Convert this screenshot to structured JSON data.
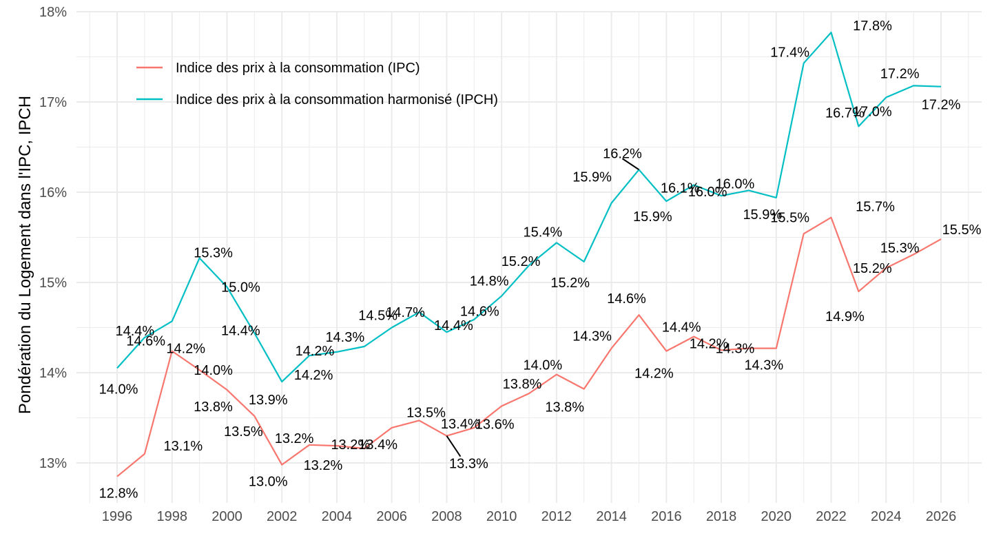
{
  "chart_data": {
    "type": "line",
    "title": "",
    "xlabel": "",
    "ylabel": "Pondération du Logement dans l'IPC, IPCH",
    "x": [
      1996,
      1997,
      1998,
      1999,
      2000,
      2001,
      2002,
      2003,
      2004,
      2005,
      2006,
      2007,
      2008,
      2009,
      2010,
      2011,
      2012,
      2013,
      2014,
      2015,
      2016,
      2017,
      2018,
      2019,
      2020,
      2021,
      2022,
      2023,
      2024,
      2025,
      2026
    ],
    "xlim": [
      1994.5,
      2027.5
    ],
    "ylim": [
      12.6,
      18.0
    ],
    "x_ticks": [
      1996,
      1998,
      2000,
      2002,
      2004,
      2006,
      2008,
      2010,
      2012,
      2014,
      2016,
      2018,
      2020,
      2022,
      2024,
      2026
    ],
    "x_tick_labels": [
      "1996",
      "1998",
      "2000",
      "2002",
      "2004",
      "2006",
      "2008",
      "2010",
      "2012",
      "2014",
      "2016",
      "2018",
      "2020",
      "2022",
      "2024",
      "2026"
    ],
    "y_ticks": [
      13,
      14,
      15,
      16,
      17,
      18
    ],
    "y_tick_labels": [
      "13%",
      "14%",
      "15%",
      "16%",
      "17%",
      "18%"
    ],
    "grid": true,
    "legend_position": "top-left",
    "series": [
      {
        "name": "Indice des prix à la consommation (IPC)",
        "color": "#F8766D",
        "values": [
          12.85,
          13.1,
          14.24,
          14.03,
          13.81,
          13.52,
          12.98,
          13.2,
          13.19,
          13.16,
          13.39,
          13.47,
          13.3,
          13.39,
          13.63,
          13.77,
          13.98,
          13.82,
          14.27,
          14.64,
          14.24,
          14.4,
          14.25,
          14.27,
          14.27,
          15.54,
          15.72,
          14.9,
          15.16,
          15.31,
          15.48
        ]
      },
      {
        "name": "Indice des prix à la consommation harmonisé (IPCH)",
        "color": "#00BFC4",
        "values": [
          14.05,
          14.39,
          14.57,
          15.27,
          14.95,
          14.44,
          13.9,
          14.19,
          14.23,
          14.29,
          14.5,
          14.67,
          14.45,
          14.59,
          14.85,
          15.19,
          15.44,
          15.23,
          15.88,
          16.25,
          15.9,
          16.08,
          15.96,
          16.02,
          15.94,
          17.43,
          17.77,
          16.73,
          17.05,
          17.18,
          17.17
        ]
      }
    ],
    "data_labels": [
      {
        "series": 0,
        "text": [
          "12.8%",
          "13.1%",
          "14.2%",
          "14.0%",
          "13.8%",
          "13.5%",
          "13.0%",
          "13.2%",
          "13.2%",
          "13.2%",
          "13.4%",
          "13.5%",
          "13.3%",
          "13.4%",
          "13.6%",
          "13.8%",
          "14.0%",
          "13.8%",
          "14.3%",
          "14.6%",
          "14.2%",
          "14.4%",
          "14.2%",
          "14.3%",
          "14.3%",
          "15.5%",
          "15.7%",
          "14.9%",
          "15.2%",
          "15.3%",
          "15.5%"
        ]
      },
      {
        "series": 1,
        "text": [
          "14.0%",
          "14.4%",
          "14.6%",
          "15.3%",
          "15.0%",
          "14.4%",
          "13.9%",
          "14.2%",
          "14.2%",
          "14.3%",
          "14.5%",
          "14.7%",
          "14.4%",
          "14.6%",
          "14.8%",
          "15.2%",
          "15.4%",
          "15.2%",
          "15.9%",
          "16.2%",
          "15.9%",
          "16.1%",
          "16.0%",
          "16.0%",
          "15.9%",
          "17.4%",
          "17.8%",
          "16.7%",
          "17.0%",
          "17.2%",
          "17.2%"
        ]
      }
    ]
  }
}
